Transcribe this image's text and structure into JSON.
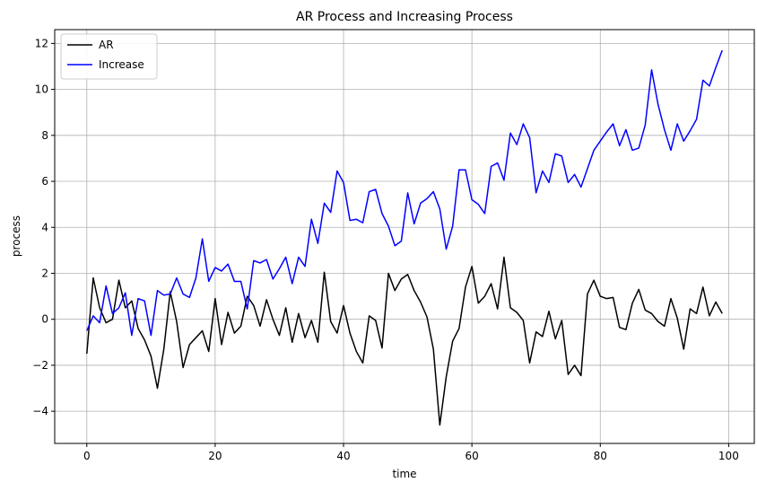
{
  "chart_data": {
    "type": "line",
    "title": "AR Process and Increasing Process",
    "xlabel": "time",
    "ylabel": "process",
    "xlim": [
      -5,
      104
    ],
    "ylim": [
      -5.4,
      12.6
    ],
    "xticks": [
      0,
      20,
      40,
      60,
      80,
      100
    ],
    "yticks": [
      -4,
      -2,
      0,
      2,
      4,
      6,
      8,
      10,
      12
    ],
    "grid": true,
    "legend_position": "top-left",
    "series": [
      {
        "name": "AR",
        "color": "#000000",
        "x": [
          0,
          1,
          2,
          3,
          4,
          5,
          6,
          7,
          8,
          9,
          10,
          11,
          12,
          13,
          14,
          15,
          16,
          17,
          18,
          19,
          20,
          21,
          22,
          23,
          24,
          25,
          26,
          27,
          28,
          29,
          30,
          31,
          32,
          33,
          34,
          35,
          36,
          37,
          38,
          39,
          40,
          41,
          42,
          43,
          44,
          45,
          46,
          47,
          48,
          49,
          50,
          51,
          52,
          53,
          54,
          55,
          56,
          57,
          58,
          59,
          60,
          61,
          62,
          63,
          64,
          65,
          66,
          67,
          68,
          69,
          70,
          71,
          72,
          73,
          74,
          75,
          76,
          77,
          78,
          79,
          80,
          81,
          82,
          83,
          84,
          85,
          86,
          87,
          88,
          89,
          90,
          91,
          92,
          93,
          94,
          95,
          96,
          97,
          98,
          99
        ],
        "values": [
          -1.5,
          1.8,
          0.5,
          -0.15,
          0.0,
          1.7,
          0.5,
          0.8,
          -0.4,
          -0.9,
          -1.6,
          -3.0,
          -1.3,
          1.2,
          -0.1,
          -2.1,
          -1.1,
          -0.8,
          -0.5,
          -1.4,
          0.9,
          -1.1,
          0.3,
          -0.6,
          -0.3,
          1.0,
          0.6,
          -0.3,
          0.85,
          0.0,
          -0.7,
          0.5,
          -1.0,
          0.25,
          -0.8,
          -0.05,
          -1.0,
          2.05,
          -0.1,
          -0.6,
          0.6,
          -0.6,
          -1.4,
          -1.9,
          0.15,
          -0.05,
          -1.25,
          2.0,
          1.25,
          1.75,
          1.95,
          1.25,
          0.75,
          0.1,
          -1.3,
          -4.6,
          -2.5,
          -0.95,
          -0.4,
          1.4,
          2.3,
          0.7,
          1.0,
          1.55,
          0.45,
          2.7,
          0.5,
          0.3,
          -0.05,
          -1.9,
          -0.55,
          -0.75,
          0.35,
          -0.85,
          -0.05,
          -2.4,
          -2.0,
          -2.45,
          1.1,
          1.7,
          1.0,
          0.9,
          0.95,
          -0.35,
          -0.45,
          0.7,
          1.3,
          0.4,
          0.25,
          -0.1,
          -0.3,
          0.9,
          0.05,
          -1.3,
          0.45,
          0.25,
          1.4,
          0.15,
          0.75,
          0.25
        ]
      },
      {
        "name": "Increase",
        "color": "#0000ff",
        "x": [
          0,
          1,
          2,
          3,
          4,
          5,
          6,
          7,
          8,
          9,
          10,
          11,
          12,
          13,
          14,
          15,
          16,
          17,
          18,
          19,
          20,
          21,
          22,
          23,
          24,
          25,
          26,
          27,
          28,
          29,
          30,
          31,
          32,
          33,
          34,
          35,
          36,
          37,
          38,
          39,
          40,
          41,
          42,
          43,
          44,
          45,
          46,
          47,
          48,
          49,
          50,
          51,
          52,
          53,
          54,
          55,
          56,
          57,
          58,
          59,
          60,
          61,
          62,
          63,
          64,
          65,
          66,
          67,
          68,
          69,
          70,
          71,
          72,
          73,
          74,
          75,
          76,
          77,
          78,
          79,
          80,
          81,
          82,
          83,
          84,
          85,
          86,
          87,
          88,
          89,
          90,
          91,
          92,
          93,
          94,
          95,
          96,
          97,
          98,
          99
        ],
        "values": [
          -0.5,
          0.15,
          -0.15,
          1.45,
          0.25,
          0.5,
          1.15,
          -0.7,
          0.9,
          0.8,
          -0.7,
          1.25,
          1.05,
          1.1,
          1.8,
          1.1,
          0.95,
          1.8,
          3.5,
          1.65,
          2.25,
          2.1,
          2.4,
          1.65,
          1.65,
          0.45,
          2.55,
          2.45,
          2.6,
          1.75,
          2.2,
          2.7,
          1.55,
          2.7,
          2.3,
          4.35,
          3.3,
          5.05,
          4.65,
          6.45,
          5.95,
          4.3,
          4.35,
          4.2,
          5.55,
          5.65,
          4.6,
          4.05,
          3.2,
          3.4,
          5.5,
          4.15,
          5.05,
          5.25,
          5.55,
          4.8,
          3.05,
          4.05,
          6.5,
          6.5,
          5.2,
          5.0,
          4.6,
          6.65,
          6.8,
          6.05,
          8.1,
          7.6,
          8.5,
          7.9,
          5.5,
          6.45,
          5.95,
          7.2,
          7.1,
          5.95,
          6.3,
          5.75,
          6.55,
          7.35,
          7.75,
          8.15,
          8.5,
          7.55,
          8.25,
          7.35,
          7.45,
          8.45,
          10.85,
          9.35,
          8.25,
          7.35,
          8.5,
          7.75,
          8.2,
          8.7,
          10.4,
          10.15,
          10.95,
          11.7
        ]
      }
    ]
  }
}
